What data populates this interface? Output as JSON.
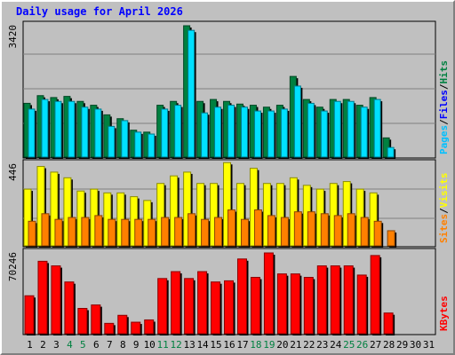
{
  "title": "Daily usage for April 2026",
  "colors": {
    "hits": "#008040",
    "files": "#00e0ff",
    "sites": "#ff8000",
    "visits": "#ffff00",
    "kbytes": "#ff0000",
    "weekend_day": "#008040",
    "weekday": "#000000",
    "background": "#c0c0c0",
    "title": "#0000ff"
  },
  "chart_data": [
    {
      "type": "bar",
      "panel": "hits-files-pages",
      "ymax_label": "3420",
      "ylim": [
        0,
        3420
      ],
      "legend": [
        {
          "text": "Pages",
          "color": "#00c0ff"
        },
        {
          "text": "/",
          "color": "#000000"
        },
        {
          "text": "Files",
          "color": "#0000ff"
        },
        {
          "text": "/",
          "color": "#000000"
        },
        {
          "text": "Hits",
          "color": "#008040"
        }
      ],
      "categories": [
        "1",
        "2",
        "3",
        "4",
        "5",
        "6",
        "7",
        "8",
        "9",
        "10",
        "11",
        "12",
        "13",
        "14",
        "15",
        "16",
        "17",
        "18",
        "19",
        "20",
        "21",
        "22",
        "23",
        "24",
        "25",
        "26",
        "27",
        "28",
        "29",
        "30",
        "31"
      ],
      "series": [
        {
          "name": "Hits",
          "values": [
            1400,
            1600,
            1550,
            1580,
            1450,
            1350,
            1100,
            1000,
            700,
            650,
            1350,
            1450,
            3420,
            1450,
            1500,
            1450,
            1380,
            1350,
            1300,
            1350,
            2100,
            1500,
            1300,
            1500,
            1500,
            1350,
            1550,
            500,
            0,
            0,
            0
          ]
        },
        {
          "name": "Files",
          "values": [
            1250,
            1500,
            1450,
            1450,
            1300,
            1250,
            800,
            950,
            650,
            600,
            1250,
            1350,
            3300,
            1150,
            1300,
            1350,
            1300,
            1200,
            1200,
            1250,
            1850,
            1400,
            1200,
            1450,
            1450,
            1300,
            1500,
            250,
            0,
            0,
            0
          ]
        },
        {
          "name": "Pages",
          "values": [
            0,
            0,
            0,
            0,
            0,
            0,
            0,
            0,
            0,
            0,
            0,
            0,
            0,
            0,
            0,
            0,
            0,
            0,
            0,
            0,
            0,
            0,
            0,
            0,
            0,
            0,
            0,
            0,
            0,
            0,
            0
          ]
        }
      ]
    },
    {
      "type": "bar",
      "panel": "visits-sites",
      "ymax_label": "446",
      "ylim": [
        0,
        446
      ],
      "legend": [
        {
          "text": "Sites",
          "color": "#ff8000"
        },
        {
          "text": "/",
          "color": "#000000"
        },
        {
          "text": "Visits",
          "color": "#ffff00"
        }
      ],
      "categories": [
        "1",
        "2",
        "3",
        "4",
        "5",
        "6",
        "7",
        "8",
        "9",
        "10",
        "11",
        "12",
        "13",
        "14",
        "15",
        "16",
        "17",
        "18",
        "19",
        "20",
        "21",
        "22",
        "23",
        "24",
        "25",
        "26",
        "27",
        "28",
        "29",
        "30",
        "31"
      ],
      "series": [
        {
          "name": "Visits",
          "values": [
            300,
            420,
            390,
            360,
            290,
            300,
            280,
            280,
            260,
            240,
            330,
            370,
            390,
            330,
            330,
            440,
            330,
            410,
            330,
            330,
            360,
            320,
            300,
            330,
            340,
            300,
            280,
            0,
            0,
            0,
            0
          ]
        },
        {
          "name": "Sites",
          "values": [
            130,
            170,
            140,
            150,
            150,
            160,
            140,
            140,
            140,
            140,
            150,
            150,
            170,
            140,
            150,
            190,
            140,
            190,
            160,
            150,
            180,
            180,
            170,
            160,
            170,
            150,
            130,
            80,
            0,
            0,
            0
          ]
        }
      ]
    },
    {
      "type": "bar",
      "panel": "kbytes",
      "ymax_label": "70246",
      "ylim": [
        0,
        70246
      ],
      "legend": [
        {
          "text": "KBytes",
          "color": "#ff0000"
        }
      ],
      "categories": [
        "1",
        "2",
        "3",
        "4",
        "5",
        "6",
        "7",
        "8",
        "9",
        "10",
        "11",
        "12",
        "13",
        "14",
        "15",
        "16",
        "17",
        "18",
        "19",
        "20",
        "21",
        "22",
        "23",
        "24",
        "25",
        "26",
        "27",
        "28",
        "29",
        "30",
        "31"
      ],
      "series": [
        {
          "name": "KBytes",
          "values": [
            33000,
            63000,
            59000,
            45000,
            22000,
            25000,
            9000,
            16000,
            10000,
            12000,
            48000,
            54000,
            48000,
            54000,
            45000,
            46000,
            65000,
            49000,
            70246,
            52000,
            52000,
            49000,
            59000,
            59000,
            59000,
            51000,
            68000,
            18000,
            0,
            0,
            0
          ]
        }
      ]
    }
  ],
  "day_labels": [
    "1",
    "2",
    "3",
    "4",
    "5",
    "6",
    "7",
    "8",
    "9",
    "10",
    "11",
    "12",
    "13",
    "14",
    "15",
    "16",
    "17",
    "18",
    "19",
    "20",
    "21",
    "22",
    "23",
    "24",
    "25",
    "26",
    "27",
    "28",
    "29",
    "30",
    "31"
  ],
  "weekend_days": [
    4,
    5,
    11,
    12,
    18,
    19,
    25,
    26
  ]
}
